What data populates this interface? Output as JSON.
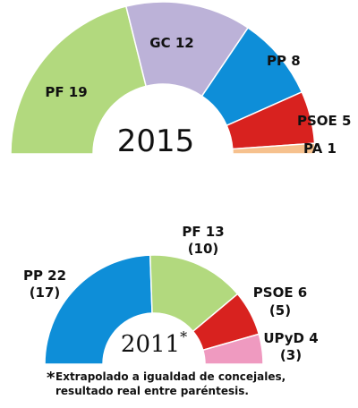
{
  "chart_data": [
    {
      "type": "pie",
      "subtype": "semicircle-parliament",
      "title": "2015",
      "series": [
        {
          "name": "PF",
          "values": [
            19
          ],
          "label": "PF 19",
          "color": "#b2d97e"
        },
        {
          "name": "GC",
          "values": [
            12
          ],
          "label": "GC 12",
          "color": "#bcb2d8"
        },
        {
          "name": "PP",
          "values": [
            8
          ],
          "label": "PP 8",
          "color": "#0e8ed8"
        },
        {
          "name": "PSOE",
          "values": [
            5
          ],
          "label": "PSOE 5",
          "color": "#d8221f"
        },
        {
          "name": "PA",
          "values": [
            1
          ],
          "label": "PA 1",
          "color": "#f6c18e"
        }
      ]
    },
    {
      "type": "pie",
      "subtype": "semicircle-parliament",
      "title": "2011",
      "title_mark": "*",
      "series": [
        {
          "name": "PP",
          "values": [
            22
          ],
          "label": "PP 22",
          "real": "(17)",
          "color": "#0e8ed8"
        },
        {
          "name": "PF",
          "values": [
            13
          ],
          "label": "PF 13",
          "real": "(10)",
          "color": "#b2d97e"
        },
        {
          "name": "PSOE",
          "values": [
            6
          ],
          "label": "PSOE 6",
          "real": "(5)",
          "color": "#d8221f"
        },
        {
          "name": "UPyD",
          "values": [
            4
          ],
          "label": "UPyD 4",
          "real": "(3)",
          "color": "#ef9ac0"
        }
      ]
    }
  ],
  "footnote": {
    "mark": "*",
    "line1": "Extrapolado a igualdad de concejales,",
    "line2": "resultado real entre paréntesis."
  }
}
